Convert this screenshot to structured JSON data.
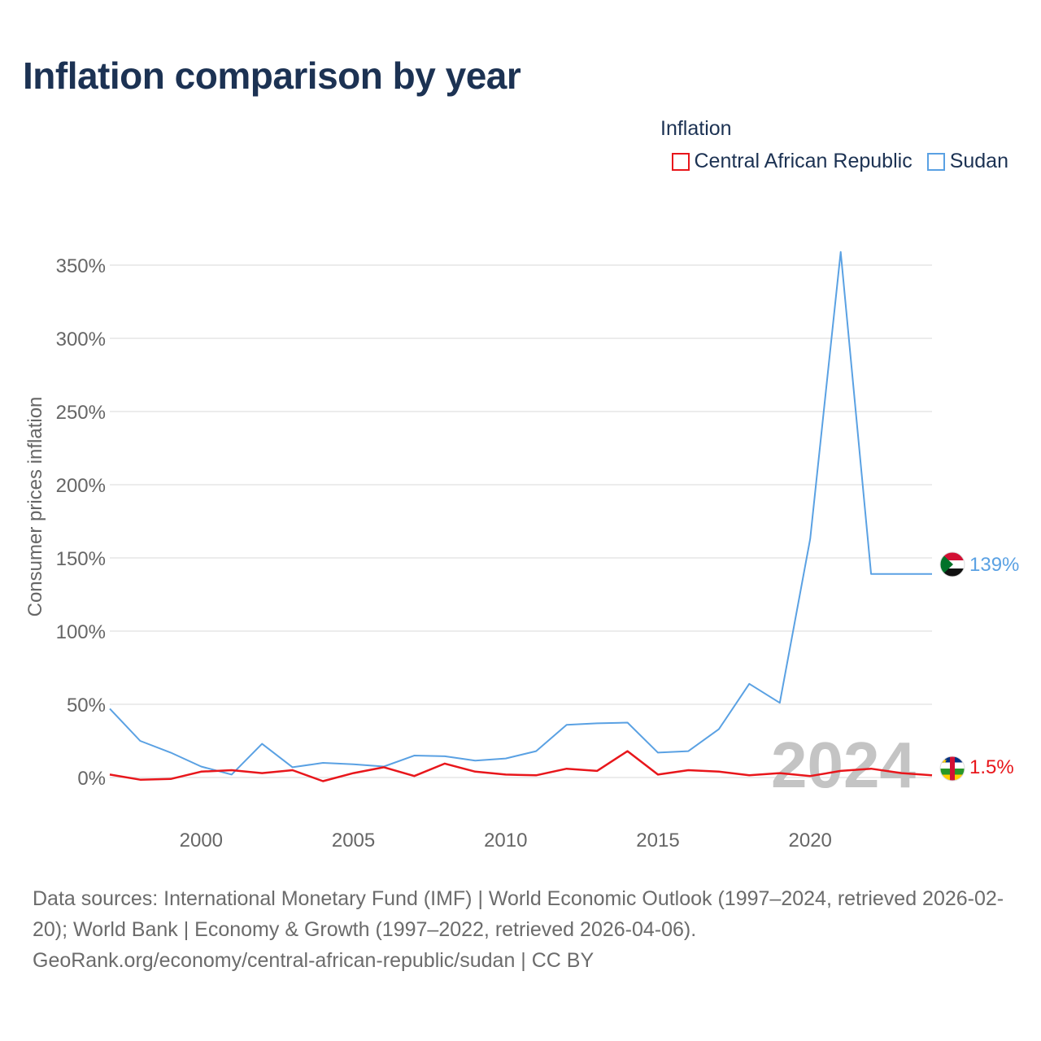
{
  "title": "Inflation comparison by year",
  "legend": {
    "title": "Inflation",
    "items": [
      {
        "label": "Central African Republic",
        "color": "#e8161b"
      },
      {
        "label": "Sudan",
        "color": "#5aa1e3"
      }
    ]
  },
  "year_watermark": "2024",
  "footer": {
    "sources": "Data sources: International Monetary Fund (IMF) | World Economic Outlook (1997–2024, retrieved 2026-02-20); World Bank | Economy & Growth (1997–2022, retrieved 2026-04-06).",
    "attribution": "GeoRank.org/economy/central-african-republic/sudan | CC BY"
  },
  "chart_data": {
    "type": "line",
    "title": "Inflation comparison by year",
    "xlabel": "",
    "ylabel": "Consumer prices inflation",
    "xlim": [
      1997,
      2024
    ],
    "ylim": [
      -30,
      370
    ],
    "y_ticks": [
      0,
      50,
      100,
      150,
      200,
      250,
      300,
      350
    ],
    "y_tick_labels": [
      "0%",
      "50%",
      "100%",
      "150%",
      "200%",
      "250%",
      "300%",
      "350%"
    ],
    "x_ticks": [
      2000,
      2005,
      2010,
      2015,
      2020
    ],
    "x_tick_labels": [
      "2000",
      "2005",
      "2010",
      "2015",
      "2020"
    ],
    "grid": true,
    "legend_position": "top-right",
    "x": [
      1997,
      1998,
      1999,
      2000,
      2001,
      2002,
      2003,
      2004,
      2005,
      2006,
      2007,
      2008,
      2009,
      2010,
      2011,
      2012,
      2013,
      2014,
      2015,
      2016,
      2017,
      2018,
      2019,
      2020,
      2021,
      2022,
      2023,
      2024
    ],
    "series": [
      {
        "name": "Sudan",
        "color": "#5aa1e3",
        "end_label": "139%",
        "values": [
          47,
          25,
          17,
          7.5,
          2,
          23,
          7,
          10,
          9,
          7.5,
          15,
          14.5,
          11.5,
          13,
          18,
          36,
          37,
          37.5,
          17,
          18,
          33,
          64,
          51,
          163,
          359,
          139,
          139,
          139
        ]
      },
      {
        "name": "Central African Republic",
        "color": "#e8161b",
        "end_label": "1.5%",
        "values": [
          2,
          -1.5,
          -1,
          4,
          5,
          3,
          5,
          -2.5,
          3,
          7,
          1,
          9.5,
          4,
          2,
          1.5,
          6,
          4.5,
          18,
          2,
          5,
          4,
          1.5,
          3,
          1,
          4.5,
          6,
          3,
          1.5
        ]
      }
    ]
  }
}
